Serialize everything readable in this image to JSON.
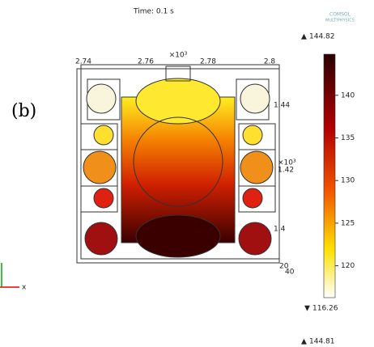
{
  "header": {
    "time": "Time: 0.1 s",
    "logo_line1": "COMSOL",
    "logo_line2": "MULTIPHYSICS"
  },
  "panel_label": "(b)",
  "axes": {
    "top_ticks": [
      "2.74",
      "2.76",
      "2.78",
      "2.8"
    ],
    "top_multiplier": "×10³",
    "right_ticks": [
      "1.44",
      "1.42",
      "1.4"
    ],
    "right_multiplier": "×10³",
    "depth_ticks": [
      "20",
      "40"
    ],
    "triad_label": "x"
  },
  "colorbar": {
    "max": 144.82,
    "min": 116.26,
    "ticks": [
      140,
      135,
      130,
      125,
      120
    ]
  },
  "next_colorbar_max": 144.81
}
